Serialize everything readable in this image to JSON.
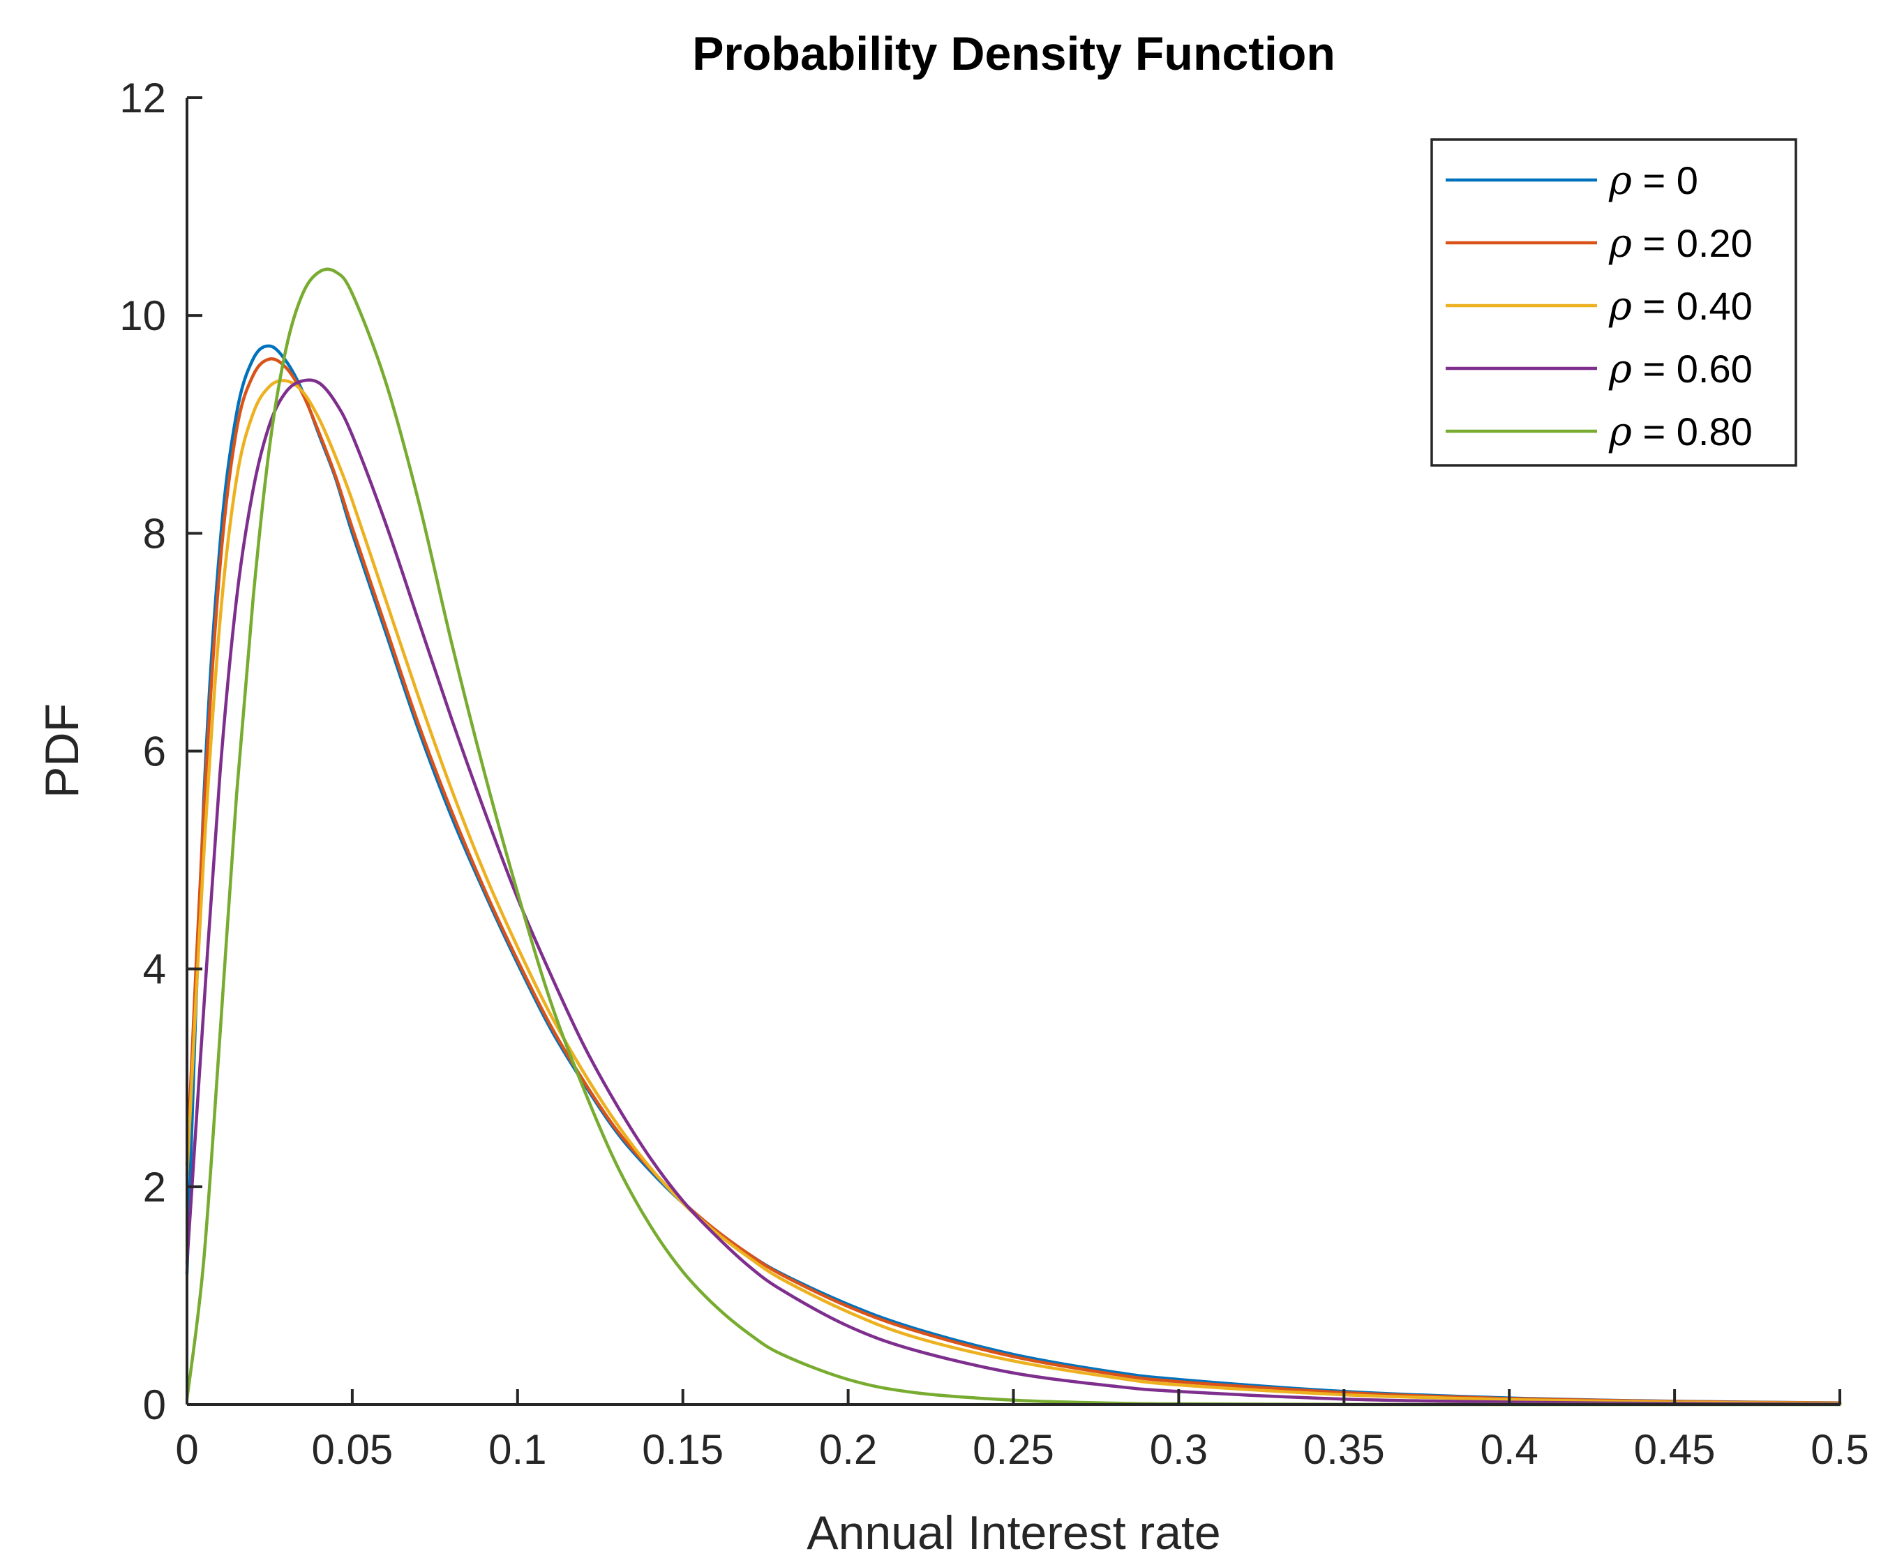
{
  "chart_data": {
    "type": "line",
    "title": "Probability Density Function",
    "xlabel": "Annual Interest rate",
    "ylabel": "PDF",
    "xlim": [
      0,
      0.5
    ],
    "ylim": [
      0,
      12
    ],
    "xticks": [
      0,
      0.05,
      0.1,
      0.15,
      0.2,
      0.25,
      0.3,
      0.35,
      0.4,
      0.45,
      0.5
    ],
    "xtick_labels": [
      "0",
      "0.05",
      "0.1",
      "0.15",
      "0.2",
      "0.25",
      "0.3",
      "0.35",
      "0.4",
      "0.45",
      "0.5"
    ],
    "yticks": [
      0,
      2,
      4,
      6,
      8,
      10,
      12
    ],
    "ytick_labels": [
      "0",
      "2",
      "4",
      "6",
      "8",
      "10",
      "12"
    ],
    "grid": false,
    "legend_position": "top-right",
    "x": [
      0,
      0.005,
      0.01,
      0.015,
      0.02,
      0.025,
      0.03,
      0.035,
      0.04,
      0.045,
      0.05,
      0.06,
      0.07,
      0.08,
      0.09,
      0.1,
      0.11,
      0.12,
      0.13,
      0.14,
      0.15,
      0.16,
      0.17,
      0.18,
      0.2,
      0.22,
      0.25,
      0.28,
      0.3,
      0.35,
      0.4,
      0.45,
      0.5
    ],
    "series": [
      {
        "name": "ρ = 0",
        "color": "#0072BD",
        "values": [
          1.2,
          5.5,
          7.9,
          9.1,
          9.6,
          9.72,
          9.58,
          9.3,
          8.9,
          8.5,
          8.0,
          7.1,
          6.2,
          5.4,
          4.7,
          4.05,
          3.45,
          2.95,
          2.5,
          2.15,
          1.85,
          1.6,
          1.38,
          1.2,
          0.92,
          0.7,
          0.46,
          0.3,
          0.23,
          0.12,
          0.06,
          0.03,
          0.015
        ]
      },
      {
        "name": "ρ = 0.20",
        "color": "#D95319",
        "values": [
          2.2,
          5.4,
          7.7,
          8.95,
          9.45,
          9.6,
          9.52,
          9.28,
          8.92,
          8.52,
          8.05,
          7.15,
          6.25,
          5.45,
          4.73,
          4.08,
          3.48,
          2.97,
          2.52,
          2.17,
          1.86,
          1.6,
          1.38,
          1.19,
          0.9,
          0.68,
          0.44,
          0.28,
          0.21,
          0.11,
          0.055,
          0.028,
          0.014
        ]
      },
      {
        "name": "ρ = 0.40",
        "color": "#EDB120",
        "values": [
          2.1,
          5.0,
          7.2,
          8.5,
          9.1,
          9.35,
          9.4,
          9.3,
          9.05,
          8.7,
          8.3,
          7.4,
          6.5,
          5.65,
          4.88,
          4.2,
          3.58,
          3.05,
          2.58,
          2.18,
          1.85,
          1.58,
          1.35,
          1.15,
          0.85,
          0.62,
          0.4,
          0.25,
          0.18,
          0.09,
          0.045,
          0.022,
          0.011
        ]
      },
      {
        "name": "ρ = 0.60",
        "color": "#7E2F8E",
        "values": [
          1.3,
          3.6,
          5.8,
          7.4,
          8.4,
          9.0,
          9.3,
          9.4,
          9.38,
          9.2,
          8.9,
          8.1,
          7.2,
          6.3,
          5.45,
          4.65,
          3.95,
          3.3,
          2.75,
          2.27,
          1.87,
          1.55,
          1.27,
          1.05,
          0.72,
          0.5,
          0.29,
          0.17,
          0.12,
          0.05,
          0.022,
          0.01,
          0.004
        ]
      },
      {
        "name": "ρ = 0.80",
        "color": "#77AC30",
        "values": [
          0.05,
          1.3,
          3.4,
          5.6,
          7.4,
          8.8,
          9.7,
          10.2,
          10.4,
          10.4,
          10.2,
          9.4,
          8.3,
          7.0,
          5.8,
          4.7,
          3.7,
          2.9,
          2.2,
          1.65,
          1.22,
          0.9,
          0.65,
          0.46,
          0.23,
          0.11,
          0.04,
          0.013,
          0.006,
          0.001,
          0.0002,
          0,
          0
        ]
      }
    ]
  }
}
